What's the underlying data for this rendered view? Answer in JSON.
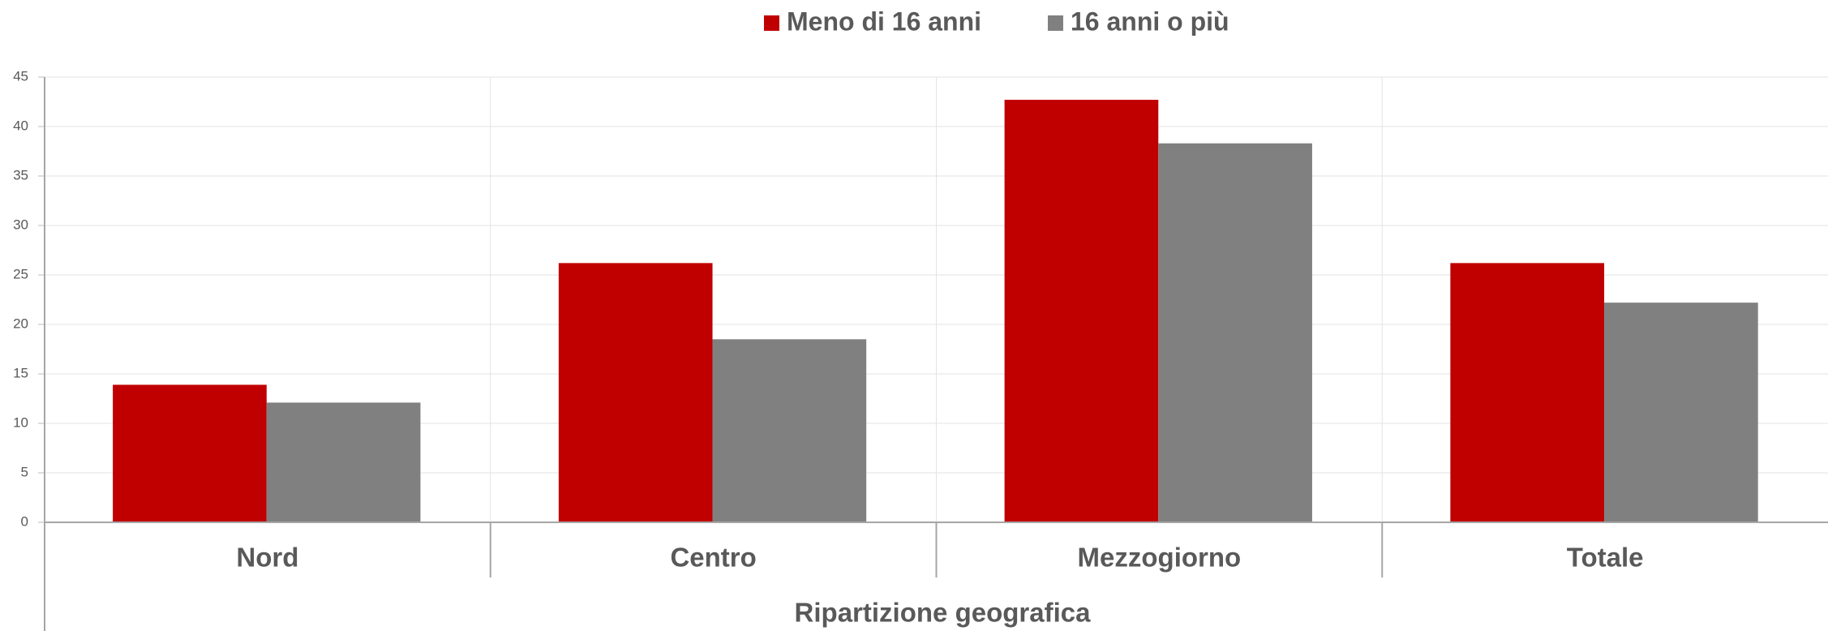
{
  "chart_data": {
    "type": "bar",
    "x_label": "Ripartizione geografica",
    "categories": [
      "Nord",
      "Centro",
      "Mezzogiorno",
      "Totale"
    ],
    "series": [
      {
        "name": "Meno di 16 anni",
        "color": "#c00000",
        "values": [
          13.9,
          26.2,
          42.7,
          26.2
        ]
      },
      {
        "name": "16 anni o più",
        "color": "#808080",
        "values": [
          12.1,
          18.5,
          38.3,
          22.2
        ]
      }
    ],
    "ylim": [
      0,
      45
    ],
    "yticks": [
      0,
      5,
      10,
      15,
      20,
      25,
      30,
      35,
      40,
      45
    ],
    "grid": true,
    "legend": "top"
  }
}
